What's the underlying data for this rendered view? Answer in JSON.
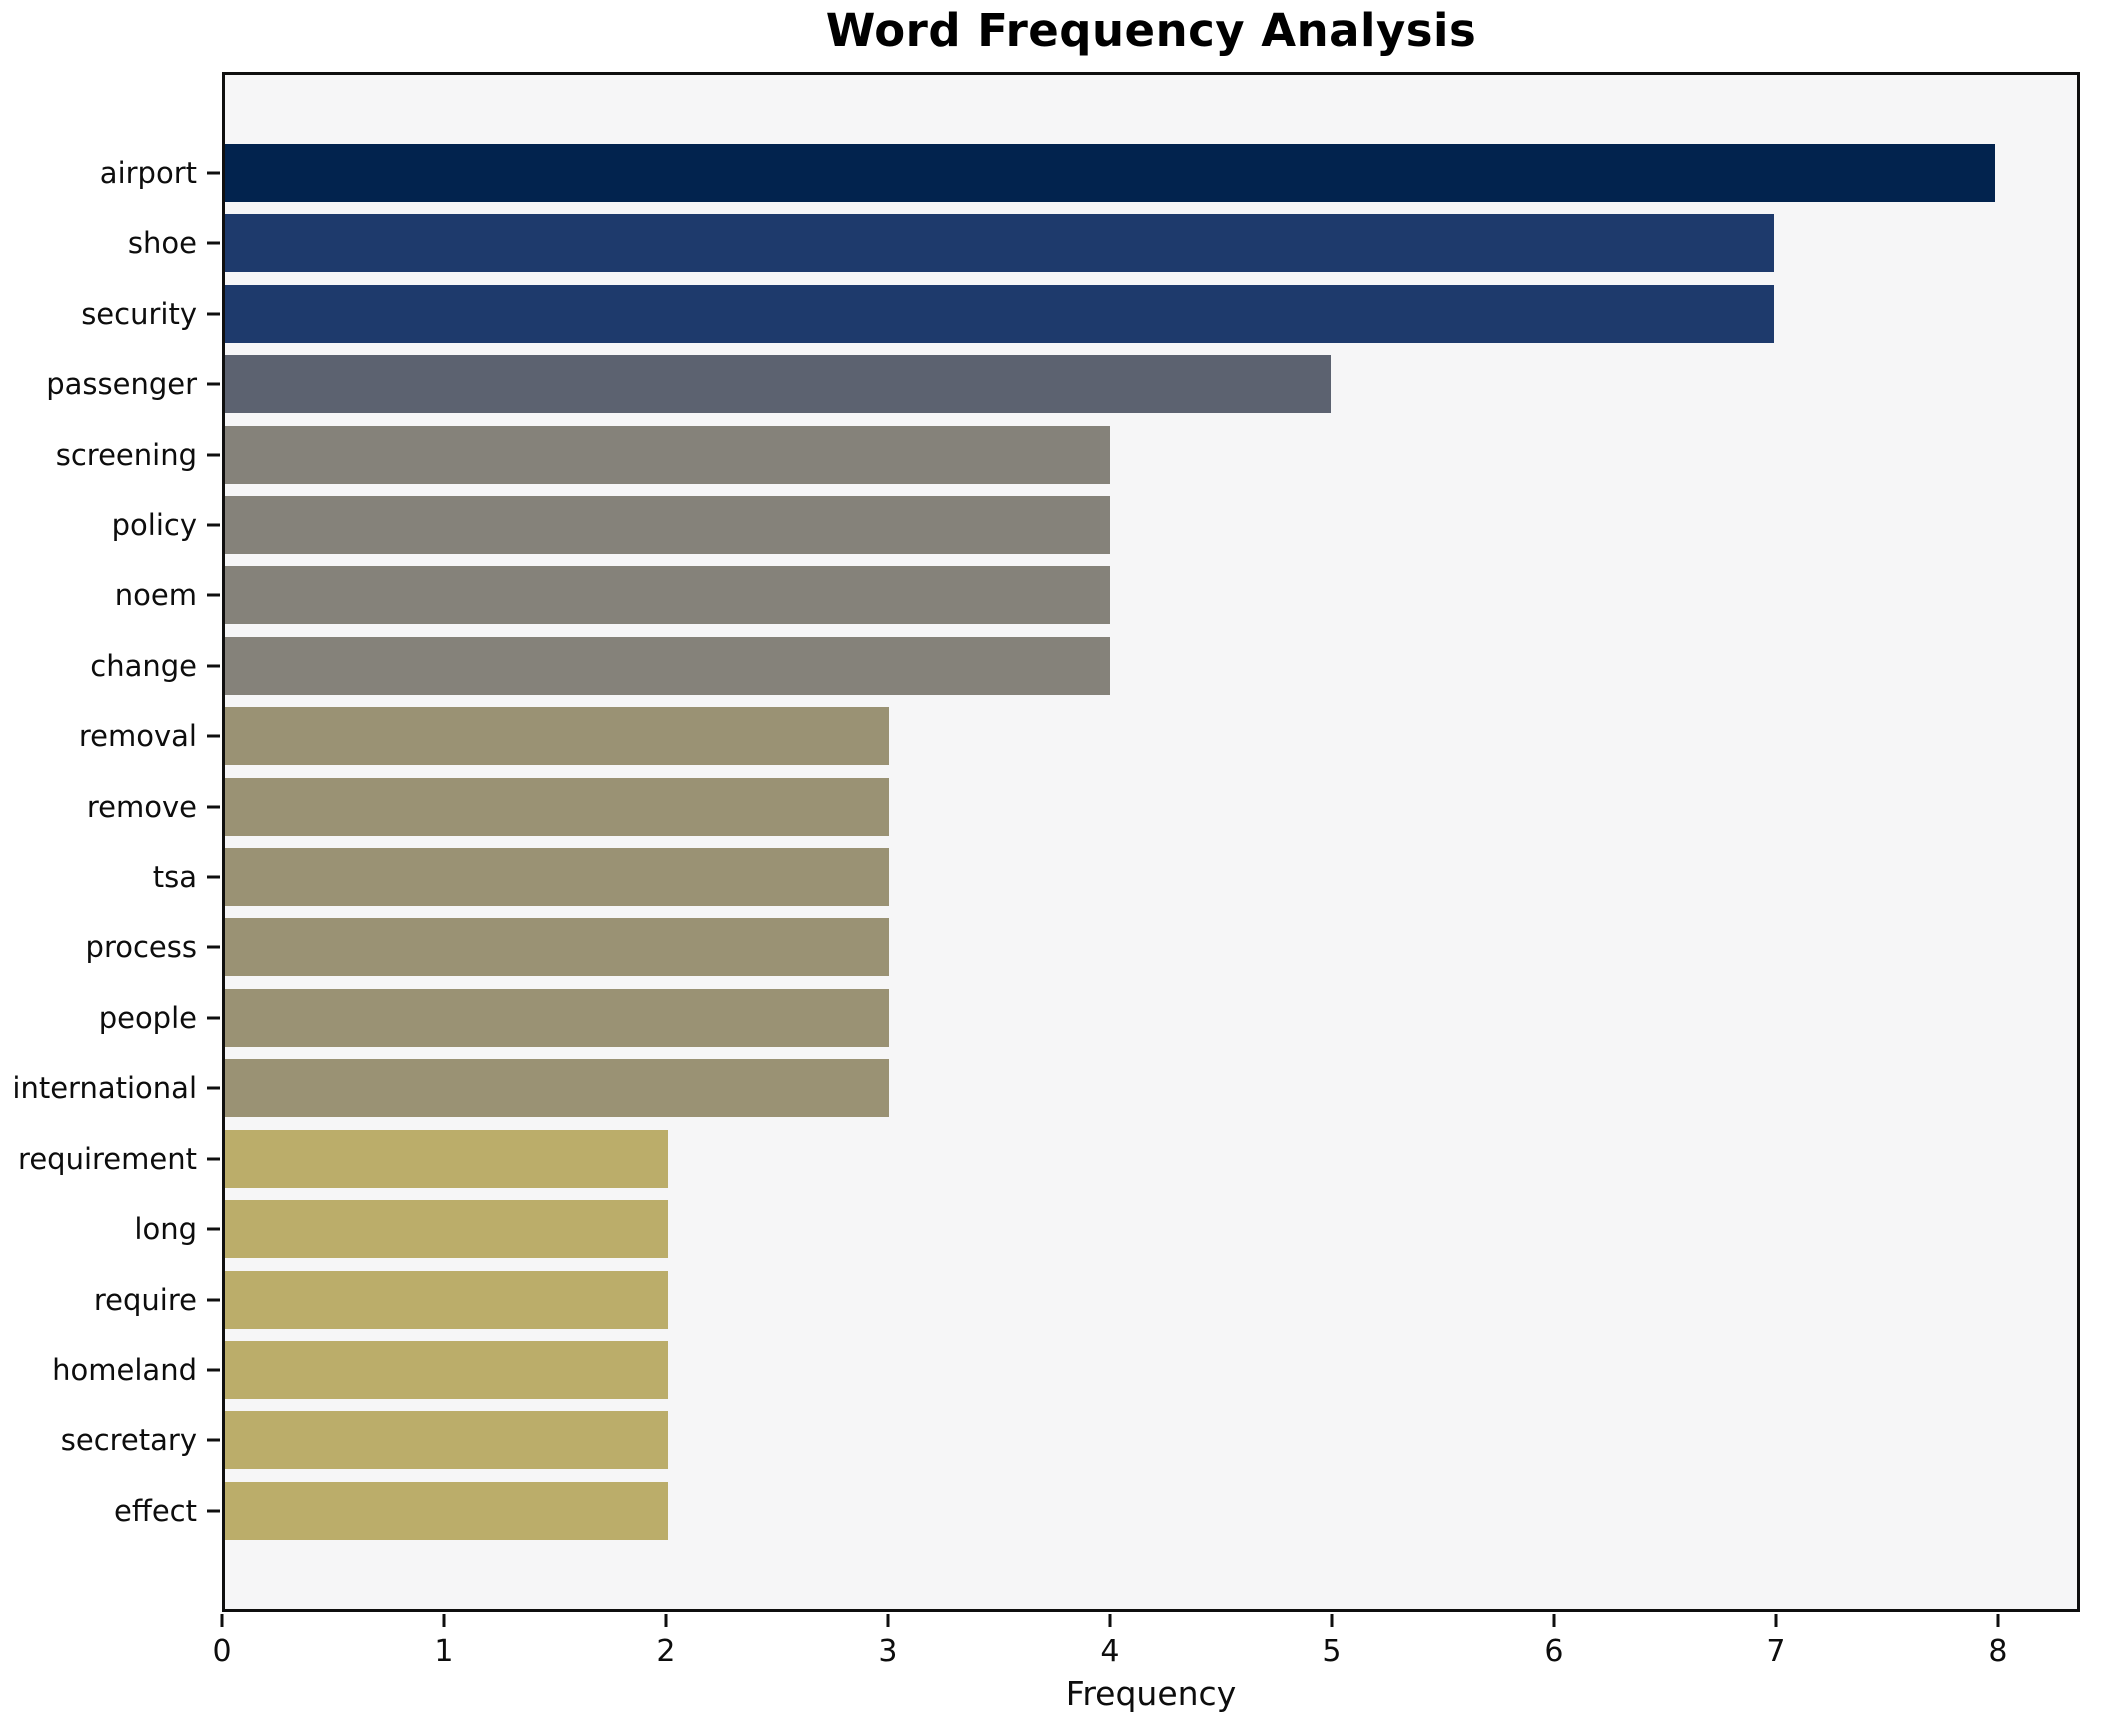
{
  "title": "Word Frequency Analysis",
  "chart_data": {
    "type": "bar",
    "orientation": "horizontal",
    "title": "Word Frequency Analysis",
    "xlabel": "Frequency",
    "ylabel": "",
    "grid": false,
    "legend": "none",
    "xlim": [
      0,
      8.37
    ],
    "x_ticks": [
      0,
      1,
      2,
      3,
      4,
      5,
      6,
      7,
      8
    ],
    "categories": [
      "airport",
      "shoe",
      "security",
      "passenger",
      "screening",
      "policy",
      "noem",
      "change",
      "removal",
      "remove",
      "tsa",
      "process",
      "people",
      "international",
      "requirement",
      "long",
      "require",
      "homeland",
      "secretary",
      "effect"
    ],
    "values": [
      8,
      7,
      7,
      5,
      4,
      4,
      4,
      4,
      3,
      3,
      3,
      3,
      3,
      3,
      2,
      2,
      2,
      2,
      2,
      2
    ],
    "bar_colors": [
      "#02234e",
      "#1e3a6c",
      "#1e3a6c",
      "#5c6270",
      "#85827a",
      "#85827a",
      "#85827a",
      "#85827a",
      "#9a9274",
      "#9a9274",
      "#9a9274",
      "#9a9274",
      "#9a9274",
      "#9a9274",
      "#bbad6a",
      "#bbad6a",
      "#bbad6a",
      "#bbad6a",
      "#bbad6a",
      "#bbad6a"
    ]
  },
  "colors": {
    "figure_background": "#ffffff",
    "plot_background": "#f6f6f7",
    "spine": "#0f0f0f",
    "text": "#0d0d0d"
  }
}
